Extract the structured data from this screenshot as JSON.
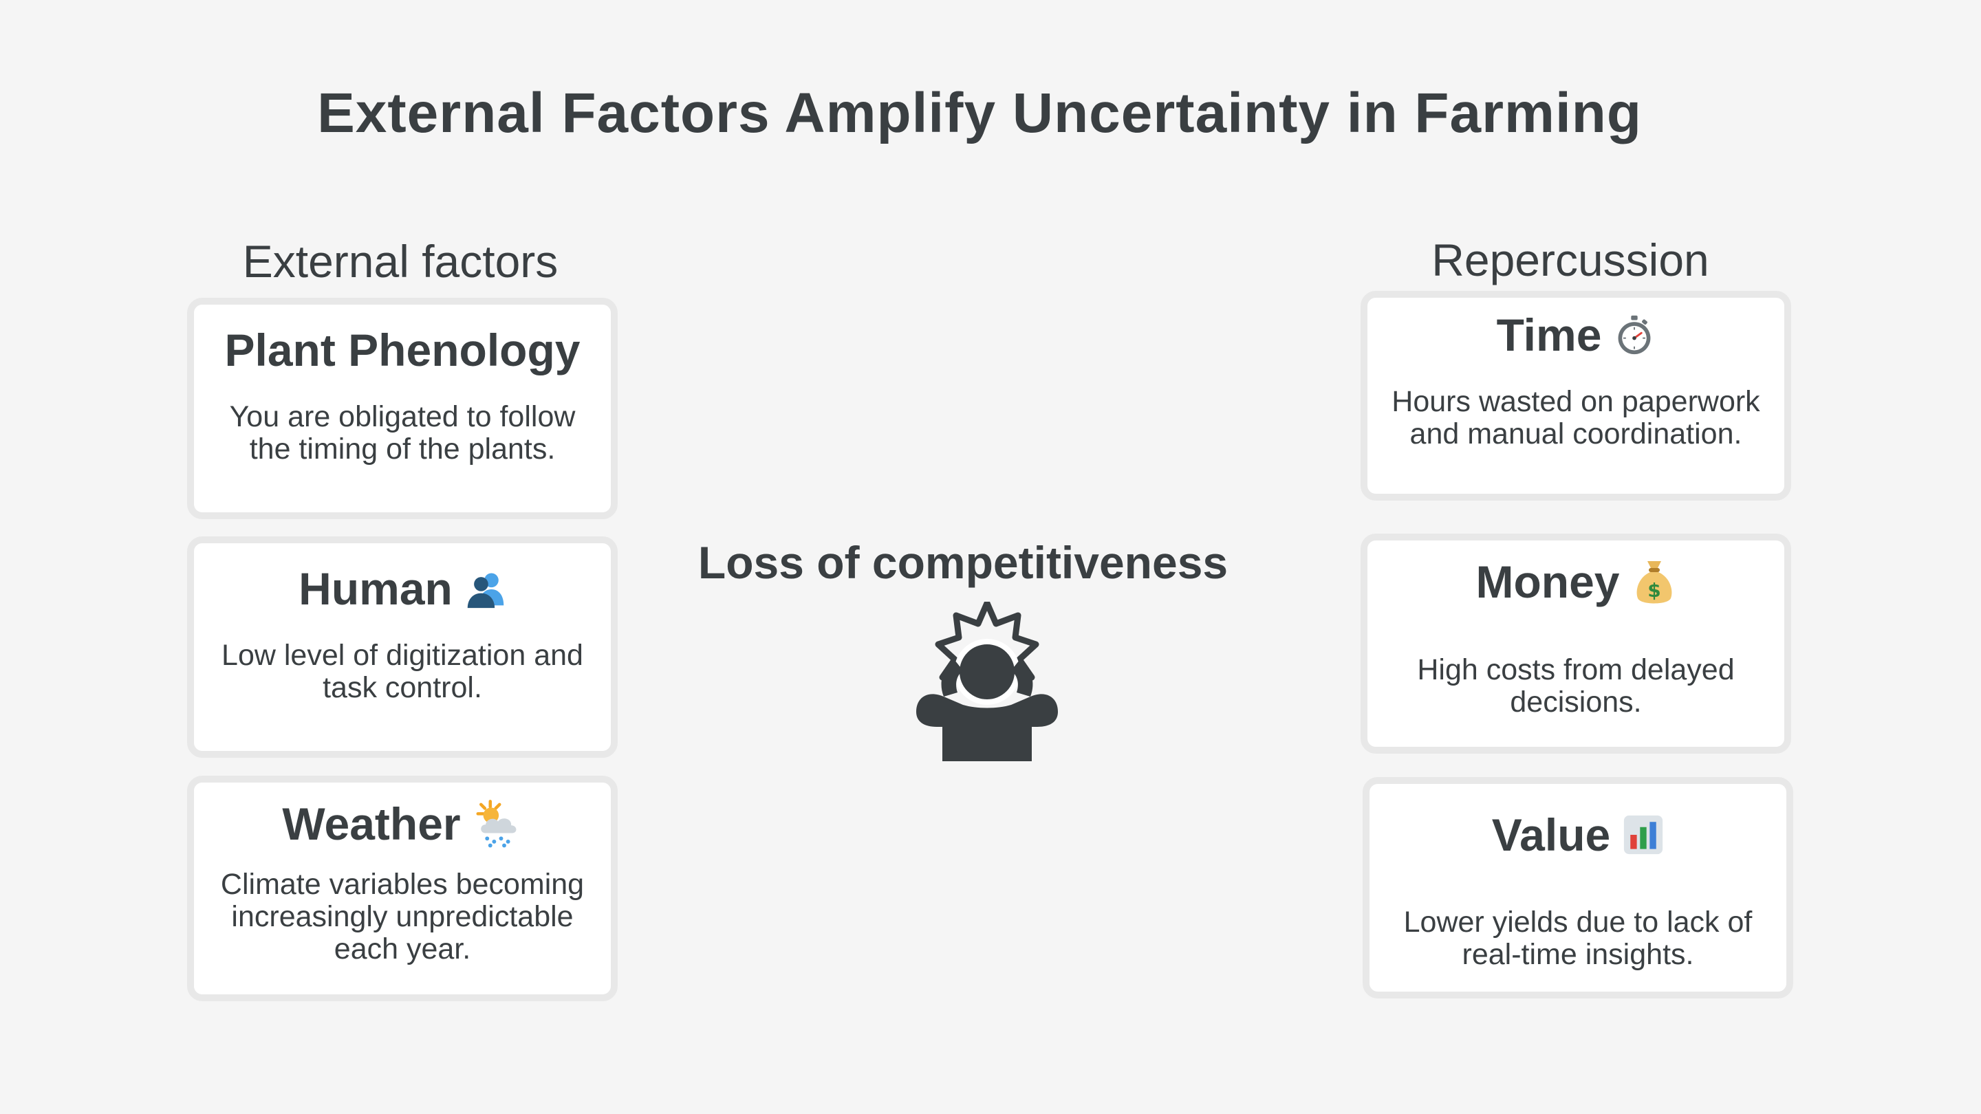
{
  "title": "External Factors Amplify Uncertainty in Farming",
  "left_column": {
    "heading": "External factors",
    "cards": [
      {
        "title": "Plant Phenology",
        "icon": "",
        "description": "You are obligated to follow the timing of the plants."
      },
      {
        "title": "Human",
        "icon": "people-icon",
        "description": "Low level of digitization and task control."
      },
      {
        "title": "Weather",
        "icon": "sun-behind-rain-cloud-icon",
        "description": "Climate variables becoming increasingly unpredictable each year."
      }
    ]
  },
  "center": {
    "label": "Loss of competitiveness",
    "icon": "stressed-person-icon"
  },
  "right_column": {
    "heading": "Repercussion",
    "cards": [
      {
        "title": "Time",
        "icon": "stopwatch-icon",
        "description": "Hours wasted on paperwork and manual coordination."
      },
      {
        "title": "Money",
        "icon": "money-bag-icon",
        "description": "High costs from delayed decisions."
      },
      {
        "title": "Value",
        "icon": "bar-chart-icon",
        "description": "Lower yields due to lack of real-time insights."
      }
    ]
  },
  "colors": {
    "background": "#f5f5f5",
    "text": "#3a3f42",
    "card_border": "#e8e8e8",
    "card_fill": "#ffffff"
  }
}
